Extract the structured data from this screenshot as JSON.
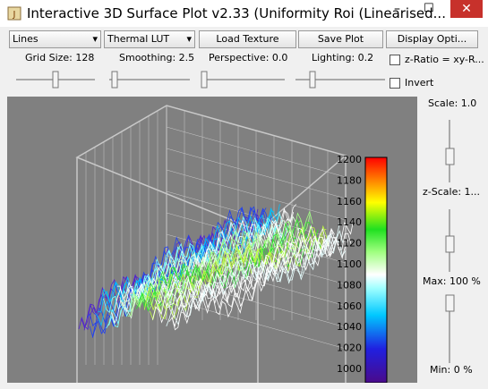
{
  "window": {
    "title": "Interactive 3D Surface Plot v2.33  (Uniformity Roi (Linearised..."
  },
  "toolbar": {
    "style_select": "Lines",
    "lut_select": "Thermal LUT",
    "buttons": [
      "Load Texture",
      "Save Plot",
      "Display Opti..."
    ]
  },
  "sliders": [
    "Grid Size: 128",
    "Smoothing: 2.5",
    "Perspective: 0.0",
    "Lighting: 0.2"
  ],
  "checkboxes": [
    "z-Ratio = xy-R...",
    "Invert"
  ],
  "side_panel": [
    "Scale: 1.0",
    "z-Scale: 1...",
    "Max: 100 %",
    "Min: 0 %"
  ],
  "colorbar": {
    "ticks": [
      "1200",
      "1180",
      "1160",
      "1140",
      "1120",
      "1100",
      "1080",
      "1060",
      "1040",
      "1020",
      "1000"
    ]
  }
}
